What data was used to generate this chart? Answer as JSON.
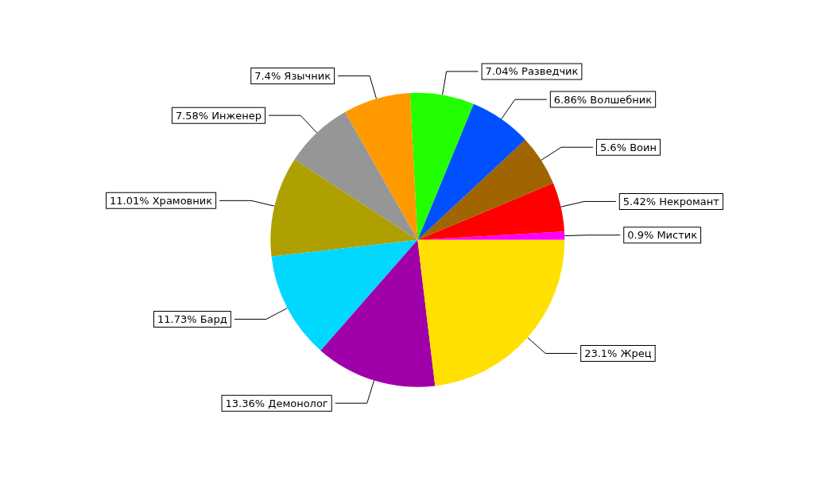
{
  "chart_data": {
    "type": "pie",
    "categories": [
      "Мистик",
      "Некромант",
      "Воин",
      "Волшебник",
      "Разведчик",
      "Язычник",
      "Инженер",
      "Храмовник",
      "Бард",
      "Демонолог",
      "Жрец"
    ],
    "values": [
      0.9,
      5.42,
      5.6,
      6.86,
      7.04,
      7.4,
      7.58,
      11.01,
      11.73,
      13.36,
      23.1
    ],
    "value_labels": [
      "0.9%",
      "5.42%",
      "5.6%",
      "6.86%",
      "7.04%",
      "7.4%",
      "7.58%",
      "11.01%",
      "11.73%",
      "13.36%",
      "23.1%"
    ],
    "colors": [
      "#ff00ff",
      "#ff0000",
      "#a06400",
      "#0050ff",
      "#22ff00",
      "#ff9900",
      "#969696",
      "#aea000",
      "#00d8ff",
      "#a000aa",
      "#ffe000"
    ],
    "legend": false
  }
}
